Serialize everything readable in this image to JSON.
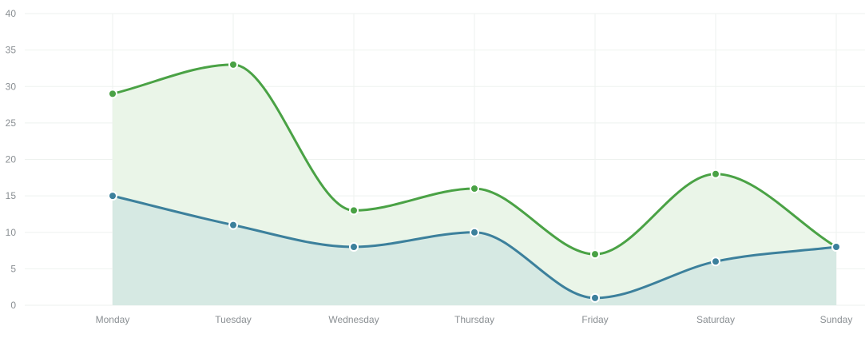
{
  "chart_data": {
    "type": "area",
    "categories": [
      "Monday",
      "Tuesday",
      "Wednesday",
      "Thursday",
      "Friday",
      "Saturday",
      "Sunday"
    ],
    "y_ticks": [
      "0",
      "5",
      "10",
      "15",
      "20",
      "25",
      "30",
      "35",
      "40"
    ],
    "ylim": [
      0,
      40
    ],
    "grid": true,
    "smooth": true,
    "series": [
      {
        "values": [
          29,
          33,
          13,
          16,
          7,
          18,
          8
        ],
        "line_color": "#4aa245",
        "fill_color": "#eaf5e8"
      },
      {
        "values": [
          15,
          11,
          8,
          10,
          1,
          6,
          8
        ],
        "line_color": "#3c809c",
        "fill_color": "#d6e9e3"
      }
    ]
  }
}
